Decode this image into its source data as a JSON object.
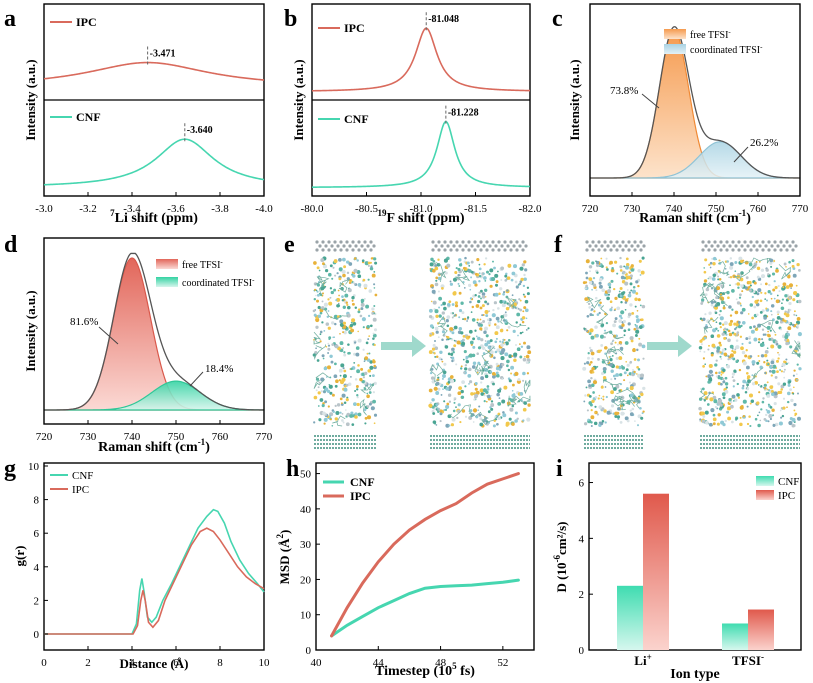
{
  "colors": {
    "cnf": "#46d6b0",
    "ipc": "#d96a5c",
    "cnf_light": "#bfe8dc",
    "ipc_light": "#f2b3aa",
    "orange": "#f59a4e",
    "blue": "#a9d3e3",
    "envelope": "#555555",
    "grid": "#8a8a8a",
    "dash": "#666666"
  },
  "panels": {
    "a": {
      "letter": "a",
      "ylabel": "Intensity (a.u.)",
      "xlabel_sup": "7",
      "xlabel": "Li shift (ppm)",
      "xticks": [
        "-3.0",
        "-3.2",
        "-3.4",
        "-3.6",
        "-3.8",
        "-4.0"
      ],
      "top_label": "IPC",
      "top_peak": "-3.471",
      "bottom_label": "CNF",
      "bottom_peak": "-3.640"
    },
    "b": {
      "letter": "b",
      "ylabel": "Intensity (a.u.)",
      "xlabel_sup": "19",
      "xlabel": "F shift (ppm)",
      "xticks": [
        "-80.0",
        "-80.5",
        "-81.0",
        "-81.5",
        "-82.0"
      ],
      "top_label": "IPC",
      "top_peak": "-81.048",
      "bottom_label": "CNF",
      "bottom_peak": "-81.228"
    },
    "c": {
      "letter": "c",
      "ylabel": "Intensity (a.u.)",
      "xlabel": "Raman shift (cm",
      "xlabel_sup": "-1",
      "xlabel_end": ")",
      "xticks": [
        "720",
        "730",
        "740",
        "750",
        "760",
        "770"
      ],
      "legend_free": "free TFSI",
      "legend_coord": "coordinated TFSI",
      "sup_minus": "-",
      "pct_free": "73.8%",
      "pct_coord": "26.2%"
    },
    "d": {
      "letter": "d",
      "ylabel": "Intensity (a.u.)",
      "xlabel": "Raman shift (cm",
      "xlabel_sup": "-1",
      "xlabel_end": ")",
      "xticks": [
        "720",
        "730",
        "740",
        "750",
        "760",
        "770"
      ],
      "legend_free": "free TFSI",
      "legend_coord": "coordinated TFSI",
      "sup_minus": "-",
      "pct_free": "81.6%",
      "pct_coord": "18.4%"
    },
    "e": {
      "letter": "e"
    },
    "f": {
      "letter": "f"
    },
    "g": {
      "letter": "g",
      "ylabel": "g(r)",
      "xlabel": "Distance (Å)",
      "xticks": [
        "0",
        "2",
        "4",
        "6",
        "8",
        "10"
      ],
      "yticks": [
        "0",
        "2",
        "4",
        "6",
        "8",
        "10"
      ],
      "legend": [
        "CNF",
        "IPC"
      ]
    },
    "h": {
      "letter": "h",
      "ylabel": "MSD (Å",
      "ylabel_sup": "2",
      "ylabel_end": ")",
      "xlabel": "Timestep (10",
      "xlabel_sup": "5",
      "xlabel_end": " fs)",
      "xticks": [
        "40",
        "44",
        "48",
        "52"
      ],
      "yticks": [
        "0",
        "10",
        "20",
        "30",
        "40",
        "50"
      ],
      "legend": [
        "CNF",
        "IPC"
      ]
    },
    "i": {
      "letter": "i",
      "ylabel": "D (10",
      "ylabel_sup": "-6",
      "ylabel_end": "cm²/s)",
      "xlabel": "Ion type",
      "xticks_main": [
        "Li",
        "TFSI"
      ],
      "xticks_sup": [
        "+",
        "-"
      ],
      "yticks": [
        "0",
        "2",
        "4",
        "6"
      ],
      "legend": [
        "CNF",
        "IPC"
      ]
    }
  },
  "chart_data": [
    {
      "panel": "a",
      "type": "line",
      "title": "",
      "xlabel": "7Li shift (ppm)",
      "ylabel": "Intensity (a.u.)",
      "xlim": [
        -3.0,
        -4.0
      ],
      "series": [
        {
          "name": "IPC",
          "peak": -3.471,
          "width": 0.34,
          "height": 0.28,
          "baseline": 0.1
        },
        {
          "name": "CNF",
          "peak": -3.64,
          "width": 0.16,
          "height": 0.55,
          "baseline": 0.05
        }
      ]
    },
    {
      "panel": "b",
      "type": "line",
      "xlabel": "19F shift (ppm)",
      "ylabel": "Intensity (a.u.)",
      "xlim": [
        -80.0,
        -82.0
      ],
      "series": [
        {
          "name": "IPC",
          "peak": -81.048,
          "width": 0.12,
          "height": 0.72,
          "baseline": 0.05
        },
        {
          "name": "CNF",
          "peak": -81.228,
          "width": 0.1,
          "height": 0.75,
          "baseline": 0.05
        }
      ]
    },
    {
      "panel": "c",
      "type": "area",
      "xlabel": "Raman shift (cm-1)",
      "ylabel": "Intensity (a.u.)",
      "xlim": [
        720,
        770
      ],
      "series": [
        {
          "name": "free TFSI-",
          "center": 740,
          "sigma": 3.5,
          "height": 1.0,
          "share": "73.8%"
        },
        {
          "name": "coordinated TFSI-",
          "center": 751,
          "sigma": 5.0,
          "height": 0.245,
          "share": "26.2%"
        }
      ]
    },
    {
      "panel": "d",
      "type": "area",
      "xlabel": "Raman shift (cm-1)",
      "ylabel": "Intensity (a.u.)",
      "xlim": [
        720,
        770
      ],
      "series": [
        {
          "name": "free TFSI-",
          "center": 740,
          "sigma": 4.2,
          "height": 1.0,
          "share": "81.6%"
        },
        {
          "name": "coordinated TFSI-",
          "center": 750,
          "sigma": 5.5,
          "height": 0.19,
          "share": "18.4%"
        }
      ]
    },
    {
      "panel": "g",
      "type": "line",
      "xlabel": "Distance (Å)",
      "ylabel": "g(r)",
      "xlim": [
        0,
        10
      ],
      "ylim": [
        0,
        10
      ],
      "series": [
        {
          "name": "CNF",
          "x": [
            0,
            4.0,
            4.2,
            4.35,
            4.45,
            4.55,
            4.7,
            4.9,
            5.1,
            5.4,
            5.8,
            6.2,
            6.6,
            7.0,
            7.4,
            7.7,
            7.9,
            8.2,
            8.5,
            8.9,
            9.3,
            9.7,
            10.0
          ],
          "y": [
            0,
            0,
            0.6,
            2.6,
            3.3,
            2.5,
            1.0,
            0.7,
            1.0,
            2.0,
            3.0,
            4.1,
            5.2,
            6.3,
            7.0,
            7.4,
            7.3,
            6.6,
            5.5,
            4.4,
            3.6,
            3.0,
            2.5
          ]
        },
        {
          "name": "IPC",
          "x": [
            0,
            4.05,
            4.25,
            4.4,
            4.5,
            4.6,
            4.75,
            4.95,
            5.2,
            5.5,
            5.9,
            6.3,
            6.7,
            7.1,
            7.4,
            7.7,
            8.0,
            8.4,
            8.8,
            9.2,
            9.6,
            10.0
          ],
          "y": [
            0,
            0,
            0.5,
            2.0,
            2.6,
            2.0,
            0.7,
            0.4,
            0.8,
            2.0,
            3.1,
            4.2,
            5.3,
            6.1,
            6.3,
            6.1,
            5.6,
            4.8,
            4.0,
            3.4,
            3.0,
            2.7
          ]
        }
      ]
    },
    {
      "panel": "h",
      "type": "line",
      "xlabel": "Timestep (10^5 fs)",
      "ylabel": "MSD (Å^2)",
      "xlim": [
        40,
        54
      ],
      "ylim": [
        0,
        53
      ],
      "series": [
        {
          "name": "CNF",
          "x": [
            41,
            42,
            43,
            44,
            45,
            46,
            47,
            48,
            49,
            50,
            51,
            52,
            53
          ],
          "y": [
            4,
            7,
            9.5,
            12,
            14,
            16,
            17.5,
            18,
            18.2,
            18.4,
            18.8,
            19.2,
            19.8
          ]
        },
        {
          "name": "IPC",
          "x": [
            41,
            42,
            43,
            44,
            45,
            46,
            47,
            48,
            49,
            50,
            51,
            52,
            53
          ],
          "y": [
            4,
            12,
            19,
            25,
            30,
            34,
            37,
            39.5,
            41.5,
            44.5,
            47,
            48.5,
            50
          ]
        }
      ]
    },
    {
      "panel": "i",
      "type": "bar",
      "xlabel": "Ion type",
      "ylabel": "D (10^-6 cm2/s)",
      "categories": [
        "Li+",
        "TFSI-"
      ],
      "ylim": [
        0,
        6.7
      ],
      "series": [
        {
          "name": "CNF",
          "values": [
            2.3,
            0.95
          ]
        },
        {
          "name": "IPC",
          "values": [
            5.6,
            1.45
          ]
        }
      ]
    }
  ]
}
